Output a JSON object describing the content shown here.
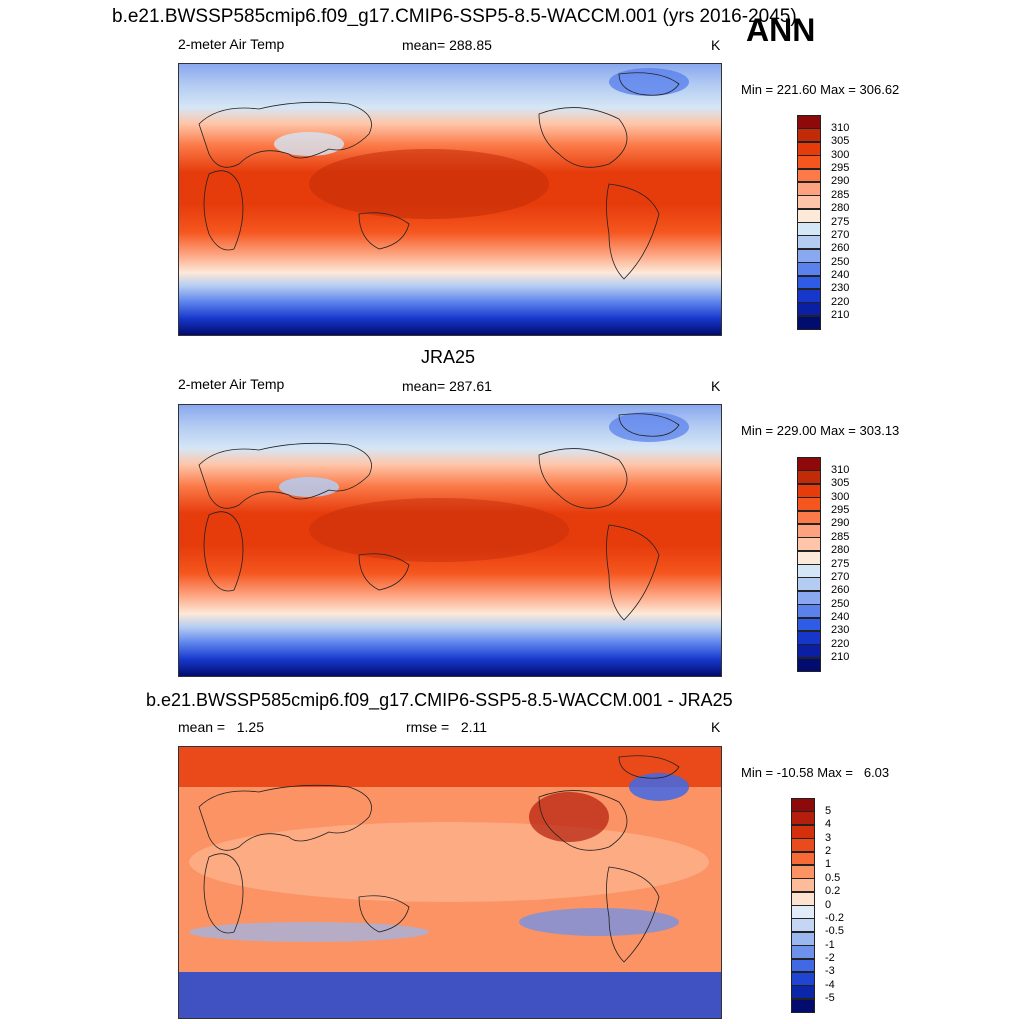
{
  "season": "ANN",
  "chart_data": [
    {
      "type": "heatmap",
      "title": "b.e21.BWSSP585cmip6.f09_g17.CMIP6-SSP5-8.5-WACCM.001 (yrs 2016-2045)",
      "left_label": "2-meter Air Temp",
      "center_label": "mean= 288.85",
      "units": "K",
      "minmax": "Min = 221.60 Max = 306.62",
      "min": 221.6,
      "max": 306.62,
      "mean": 288.85,
      "levels": [
        "310",
        "305",
        "300",
        "295",
        "290",
        "285",
        "280",
        "275",
        "270",
        "260",
        "250",
        "240",
        "230",
        "220",
        "210"
      ],
      "colors": [
        "#8e0a0a",
        "#c32b08",
        "#e63c0c",
        "#f5561e",
        "#fb7a48",
        "#fda27e",
        "#fec5a9",
        "#fde9d8",
        "#d5e6f6",
        "#b4ccf2",
        "#89a8ef",
        "#5b82ec",
        "#2f5ce6",
        "#1737cb",
        "#0a1fa3",
        "#020b6e"
      ]
    },
    {
      "type": "heatmap",
      "title": "JRA25",
      "left_label": "2-meter Air Temp",
      "center_label": "mean= 287.61",
      "units": "K",
      "minmax": "Min = 229.00 Max = 303.13",
      "min": 229.0,
      "max": 303.13,
      "mean": 287.61,
      "levels": [
        "310",
        "305",
        "300",
        "295",
        "290",
        "285",
        "280",
        "275",
        "270",
        "260",
        "250",
        "240",
        "230",
        "220",
        "210"
      ],
      "colors": [
        "#8e0a0a",
        "#c32b08",
        "#e63c0c",
        "#f5561e",
        "#fb7a48",
        "#fda27e",
        "#fec5a9",
        "#fde9d8",
        "#d5e6f6",
        "#b4ccf2",
        "#89a8ef",
        "#5b82ec",
        "#2f5ce6",
        "#1737cb",
        "#0a1fa3",
        "#020b6e"
      ]
    },
    {
      "type": "heatmap",
      "title": "b.e21.BWSSP585cmip6.f09_g17.CMIP6-SSP5-8.5-WACCM.001 - JRA25",
      "left_label": "mean =   1.25",
      "center_label": "rmse =   2.11",
      "units": "K",
      "minmax": "Min = -10.58 Max =   6.03",
      "min": -10.58,
      "max": 6.03,
      "mean": 1.25,
      "rmse": 2.11,
      "levels": [
        "5",
        "4",
        "3",
        "2",
        "1",
        "0.5",
        "0.2",
        "0",
        "-0.2",
        "-0.5",
        "-1",
        "-2",
        "-3",
        "-4",
        "-5"
      ],
      "colors": [
        "#8e0a0a",
        "#b51d0c",
        "#d4300e",
        "#ea4b1c",
        "#f66a36",
        "#fb9364",
        "#fdbb98",
        "#fde2d0",
        "#e2ecf9",
        "#c4d6f4",
        "#9ab7f0",
        "#6e92ec",
        "#4169e5",
        "#1f45d2",
        "#0c26a8",
        "#020b6e"
      ]
    }
  ]
}
